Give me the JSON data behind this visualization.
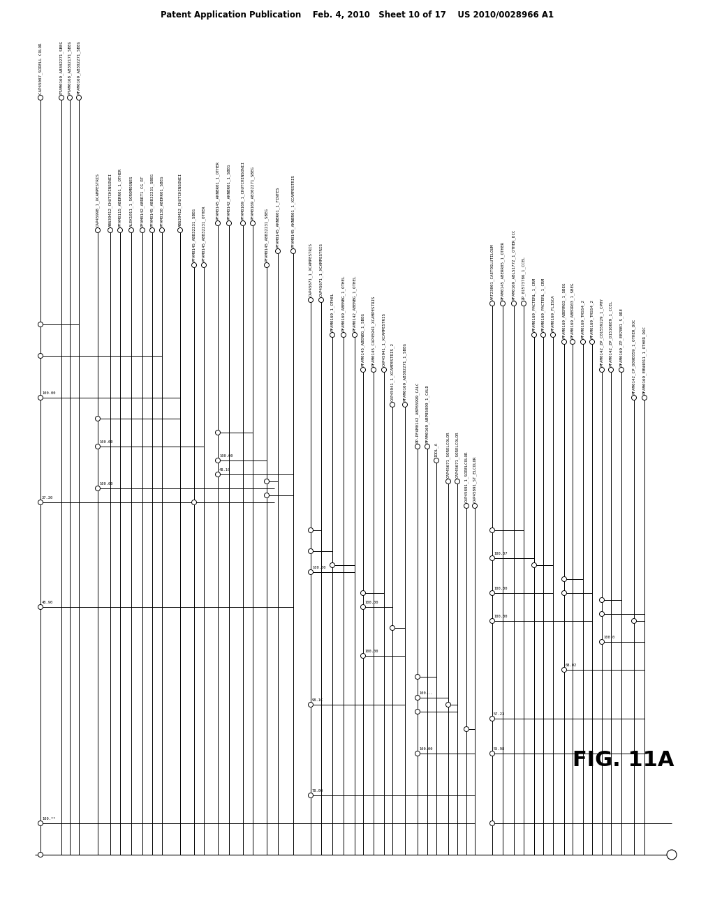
{
  "patent_header": "Patent Application Publication    Feb. 4, 2010   Sheet 10 of 17    US 2010/0028966 A1",
  "fig_label": "FIG. 11A",
  "background_color": "#ffffff",
  "line_color": "#000000",
  "text_color": "#000000",
  "font_size": 4.2,
  "header_font_size": 8.5
}
